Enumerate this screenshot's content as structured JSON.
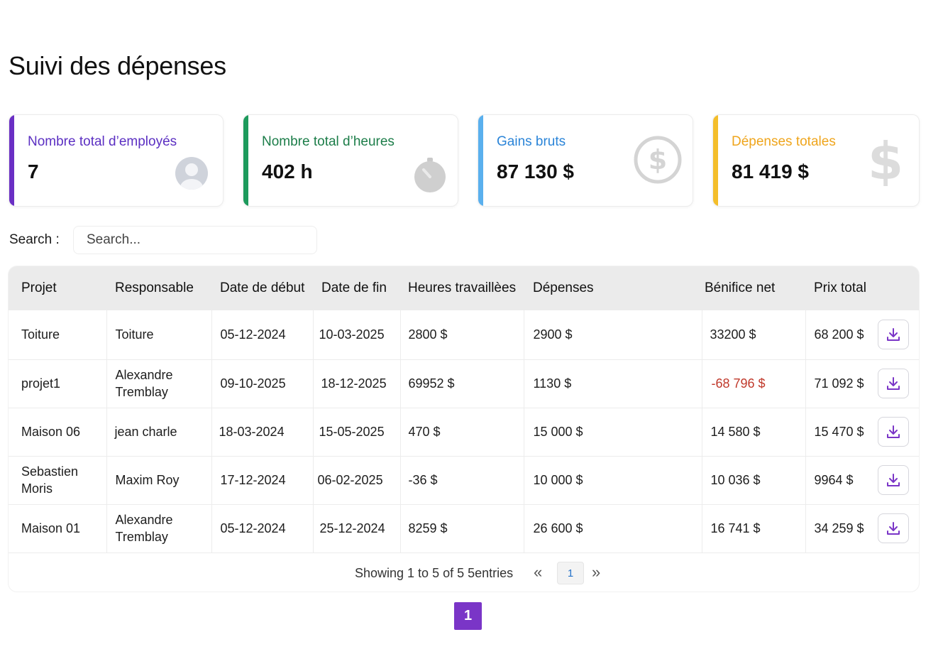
{
  "page": {
    "title": "Suivi des dépenses"
  },
  "cards": [
    {
      "label": "Nombre total d’employés",
      "value": "7",
      "icon": "user-avatar-icon",
      "accent": "#6a2fc4",
      "label_color": "#5b2fc2"
    },
    {
      "label": "Nombre total d’heures",
      "value": "402 h",
      "icon": "stopwatch-icon",
      "accent": "#1d9a5c",
      "label_color": "#1c7d49"
    },
    {
      "label": "Gains bruts",
      "value": "87 130 $",
      "icon": "dollar-circle-icon",
      "accent": "#5ab0ee",
      "label_color": "#2a84d8"
    },
    {
      "label": "Dépenses totales",
      "value": "81 419 $",
      "icon": "dollar-sign-icon",
      "accent": "#f4be2a",
      "label_color": "#efa51c"
    }
  ],
  "search": {
    "label": "Search :",
    "placeholder": "Search..."
  },
  "table": {
    "headers": [
      "Projet",
      "Responsable",
      "Date de début",
      "Date de fin",
      "Heures travaillèes",
      "Dépenses",
      "Bénifice net",
      "Prix total"
    ],
    "rows": [
      [
        "Toiture",
        "Toiture",
        "05-12-2024",
        "10-03-2025",
        "2800 $",
        "2900 $",
        "33200 $",
        "68 200 $"
      ],
      [
        "projet1",
        "Alexandre Tremblay",
        "09-10-2025",
        "18-12-2025",
        "69952 $",
        "1130 $",
        "-68 796 $",
        "71 092 $"
      ],
      [
        "Maison 06",
        "jean charle",
        "18-03-2024",
        "15-05-2025",
        "470 $",
        "15 000 $",
        "14 580 $",
        "15 470 $"
      ],
      [
        "Sebastien Moris",
        "Maxim Roy",
        "17-12-2024",
        "06-02-2025",
        "-36 $",
        "10 000 $",
        "10 036 $",
        "9964 $"
      ],
      [
        "Maison 01",
        "Alexandre Tremblay",
        "05-12-2024",
        "25-12-2024",
        "8259 $",
        "26 600 $",
        "16 741 $",
        "34 259 $"
      ]
    ],
    "negative_color": "#c0392b",
    "action_icon": "download-icon"
  },
  "pagination": {
    "showing": "Showing 1 to 5 of 5 5entries",
    "prev": "«",
    "current": "1",
    "next": "»",
    "page_button": "1",
    "page_button_color": "#7a35c7"
  }
}
